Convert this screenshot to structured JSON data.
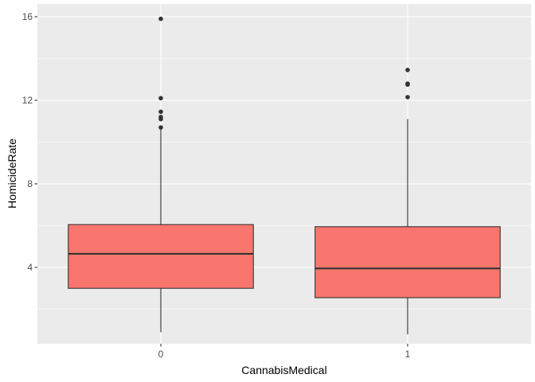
{
  "chart_data": {
    "type": "boxplot",
    "title": "",
    "xlabel": "CannabisMedical",
    "ylabel": "HomicideRate",
    "categories": [
      "0",
      "1"
    ],
    "ylim": [
      0,
      17.2
    ],
    "yticks": [
      4,
      8,
      12,
      16
    ],
    "grid": true,
    "fill_color": "#f8766d",
    "boxes": [
      {
        "category": "0",
        "lower_whisker": 0.9,
        "q1": 3.0,
        "median": 4.65,
        "q3": 6.05,
        "upper_whisker": 10.6,
        "outliers": [
          10.7,
          11.1,
          11.2,
          11.45,
          12.1,
          15.9
        ]
      },
      {
        "category": "1",
        "lower_whisker": 0.8,
        "q1": 2.55,
        "median": 3.95,
        "q3": 5.95,
        "upper_whisker": 11.1,
        "outliers": [
          12.15,
          12.75,
          12.8,
          13.45
        ]
      }
    ]
  }
}
